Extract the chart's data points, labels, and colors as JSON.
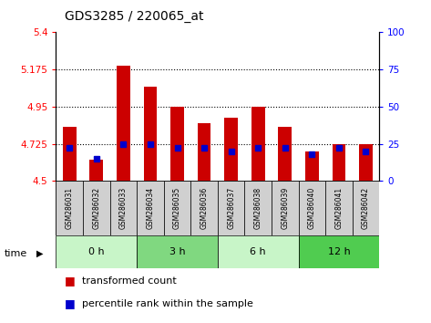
{
  "title": "GDS3285 / 220065_at",
  "samples": [
    "GSM286031",
    "GSM286032",
    "GSM286033",
    "GSM286034",
    "GSM286035",
    "GSM286036",
    "GSM286037",
    "GSM286038",
    "GSM286039",
    "GSM286040",
    "GSM286041",
    "GSM286042"
  ],
  "red_values": [
    4.83,
    4.63,
    5.2,
    5.07,
    4.95,
    4.85,
    4.88,
    4.95,
    4.83,
    4.68,
    4.72,
    4.72
  ],
  "blue_values": [
    22,
    15,
    25,
    25,
    22,
    22,
    20,
    22,
    22,
    18,
    22,
    20
  ],
  "groups": [
    {
      "label": "0 h",
      "start": 0,
      "end": 3,
      "color": "#c8f5c8"
    },
    {
      "label": "3 h",
      "start": 3,
      "end": 6,
      "color": "#80d880"
    },
    {
      "label": "6 h",
      "start": 6,
      "end": 9,
      "color": "#c8f5c8"
    },
    {
      "label": "12 h",
      "start": 9,
      "end": 12,
      "color": "#50cc50"
    }
  ],
  "ylim_left": [
    4.5,
    5.4
  ],
  "ylim_right": [
    0,
    100
  ],
  "yticks_left": [
    4.5,
    4.725,
    4.95,
    5.175,
    5.4
  ],
  "yticks_right": [
    0,
    25,
    50,
    75,
    100
  ],
  "ytick_labels_left": [
    "4.5",
    "4.725",
    "4.95",
    "5.175",
    "5.4"
  ],
  "ytick_labels_right": [
    "0",
    "25",
    "50",
    "75",
    "100"
  ],
  "hlines": [
    4.725,
    4.95,
    5.175
  ],
  "bar_bottom": 4.5,
  "bar_width": 0.5,
  "red_color": "#cc0000",
  "blue_color": "#0000cc",
  "sample_bg": "#d0d0d0",
  "legend_red": "transformed count",
  "legend_blue": "percentile rank within the sample",
  "time_label": "time"
}
